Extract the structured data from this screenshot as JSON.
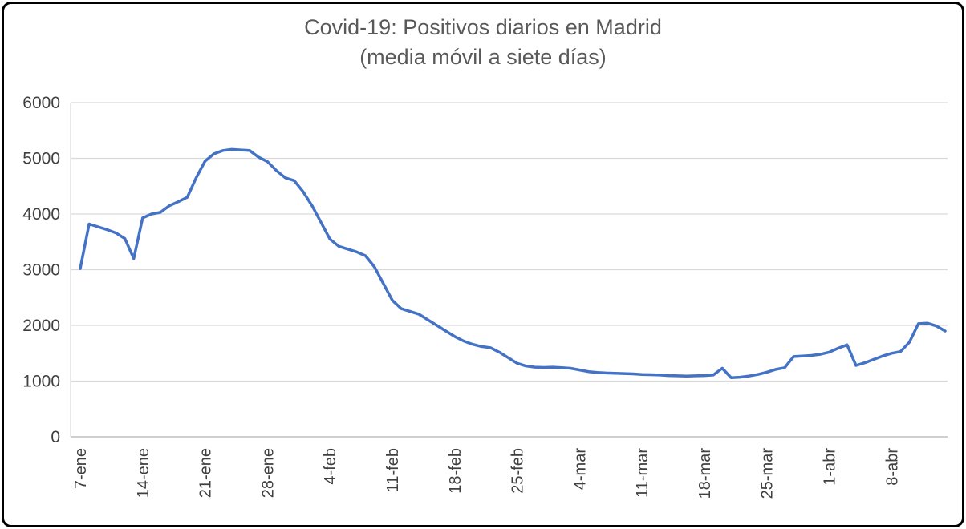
{
  "chart_data": {
    "type": "line",
    "title": "Covid-19: Positivos diarios en Madrid",
    "subtitle": "(media móvil a siete días)",
    "xlabel": "",
    "ylabel": "",
    "ylim": [
      0,
      6000
    ],
    "y_ticks": [
      0,
      1000,
      2000,
      3000,
      4000,
      5000,
      6000
    ],
    "grid": "horizontal",
    "legend": "none",
    "points_are_daily": true,
    "x_tick_interval": 7,
    "x_tick_labels": [
      "7-ene",
      "14-ene",
      "21-ene",
      "28-ene",
      "4-feb",
      "11-feb",
      "18-feb",
      "25-feb",
      "4-mar",
      "11-mar",
      "18-mar",
      "25-mar",
      "1-abr",
      "8-abr"
    ],
    "values": [
      3020,
      3820,
      3770,
      3720,
      3660,
      3560,
      3200,
      3930,
      4000,
      4030,
      4150,
      4220,
      4300,
      4650,
      4950,
      5080,
      5140,
      5160,
      5150,
      5140,
      5020,
      4940,
      4780,
      4650,
      4600,
      4400,
      4150,
      3850,
      3550,
      3420,
      3370,
      3320,
      3250,
      3050,
      2750,
      2450,
      2300,
      2250,
      2200,
      2100,
      2000,
      1900,
      1800,
      1720,
      1660,
      1620,
      1600,
      1520,
      1420,
      1320,
      1270,
      1250,
      1245,
      1250,
      1240,
      1230,
      1200,
      1170,
      1155,
      1145,
      1140,
      1135,
      1130,
      1120,
      1115,
      1110,
      1100,
      1095,
      1090,
      1095,
      1100,
      1110,
      1230,
      1060,
      1070,
      1090,
      1120,
      1160,
      1210,
      1240,
      1440,
      1450,
      1460,
      1480,
      1520,
      1590,
      1650,
      1280,
      1330,
      1390,
      1450,
      1500,
      1530,
      1700,
      2030,
      2040,
      1990,
      1900
    ],
    "colors": {
      "line": "#4472C4",
      "grid_line": "#D9D9D9",
      "axis_line": "#BFBFBF",
      "axis_text": "#404040",
      "title_text": "#595959"
    }
  }
}
